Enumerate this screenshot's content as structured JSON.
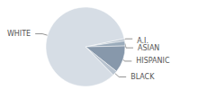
{
  "chart_data": {
    "type": "pie",
    "categories": [
      "A.I.",
      "ASIAN",
      "HISPANIC",
      "BLACK",
      "WHITE"
    ],
    "values": [
      1,
      2,
      11,
      2,
      84
    ],
    "colors": [
      "#b4c0cc",
      "#9aabbb",
      "#8798ab",
      "#b9c4d0",
      "#d6dde5"
    ]
  }
}
